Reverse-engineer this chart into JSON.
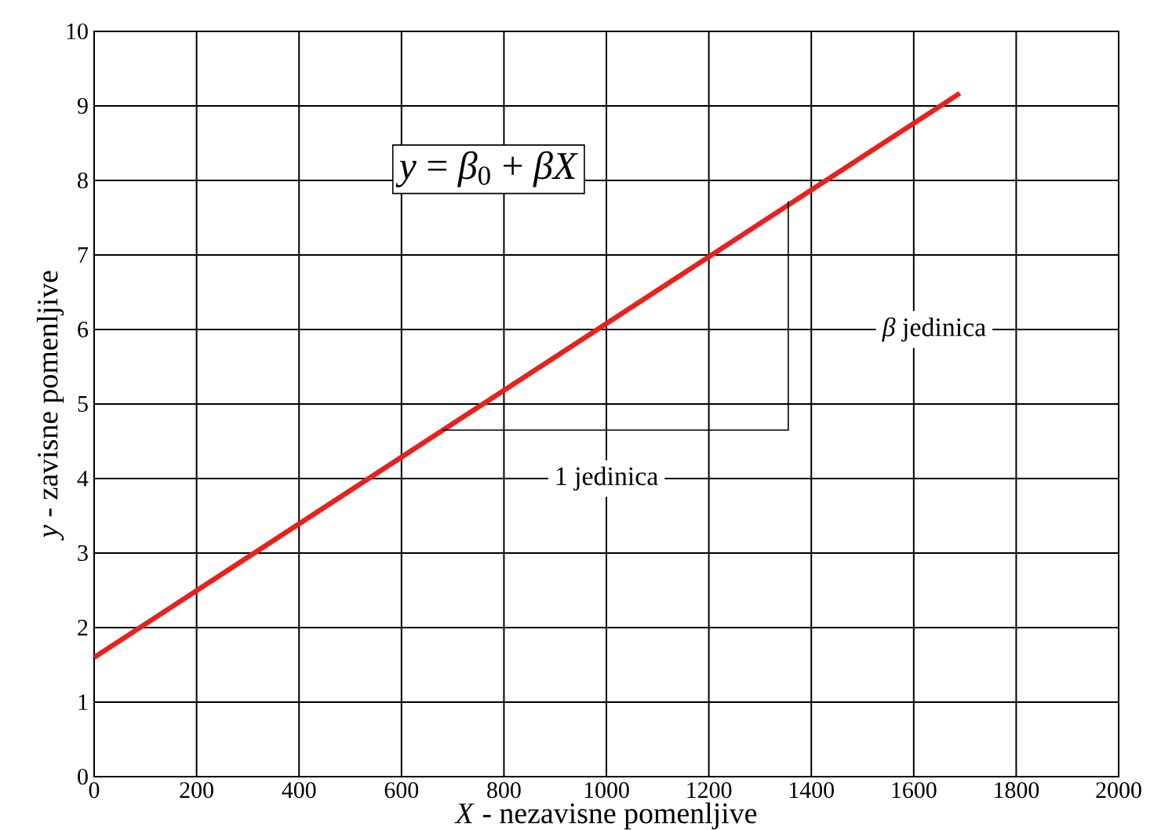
{
  "chart_data": {
    "type": "line",
    "xlabel": "*X* -  nezavisne pomenljive",
    "ylabel": "*y* -  zavisne pomenljive",
    "annotations": [
      "*y* = *β*$_{0}$ + *βX*",
      "*β*  jedinica",
      "1  jedinica"
    ],
    "x": [
      0,
      1690
    ],
    "series": [
      {
        "color": "#e8211f",
        "values": [
          1.6,
          9.17
        ]
      }
    ],
    "xlim": [
      0,
      2000
    ],
    "ylim": [
      0,
      10
    ],
    "xticks": [
      0,
      200,
      400,
      600,
      800,
      1000,
      1200,
      1400,
      1600,
      1800,
      2000
    ],
    "yticks": [
      0,
      1,
      2,
      3,
      4,
      5,
      6,
      7,
      8,
      9,
      10
    ],
    "grid": true,
    "marker": "none",
    "line_style": "solid"
  }
}
